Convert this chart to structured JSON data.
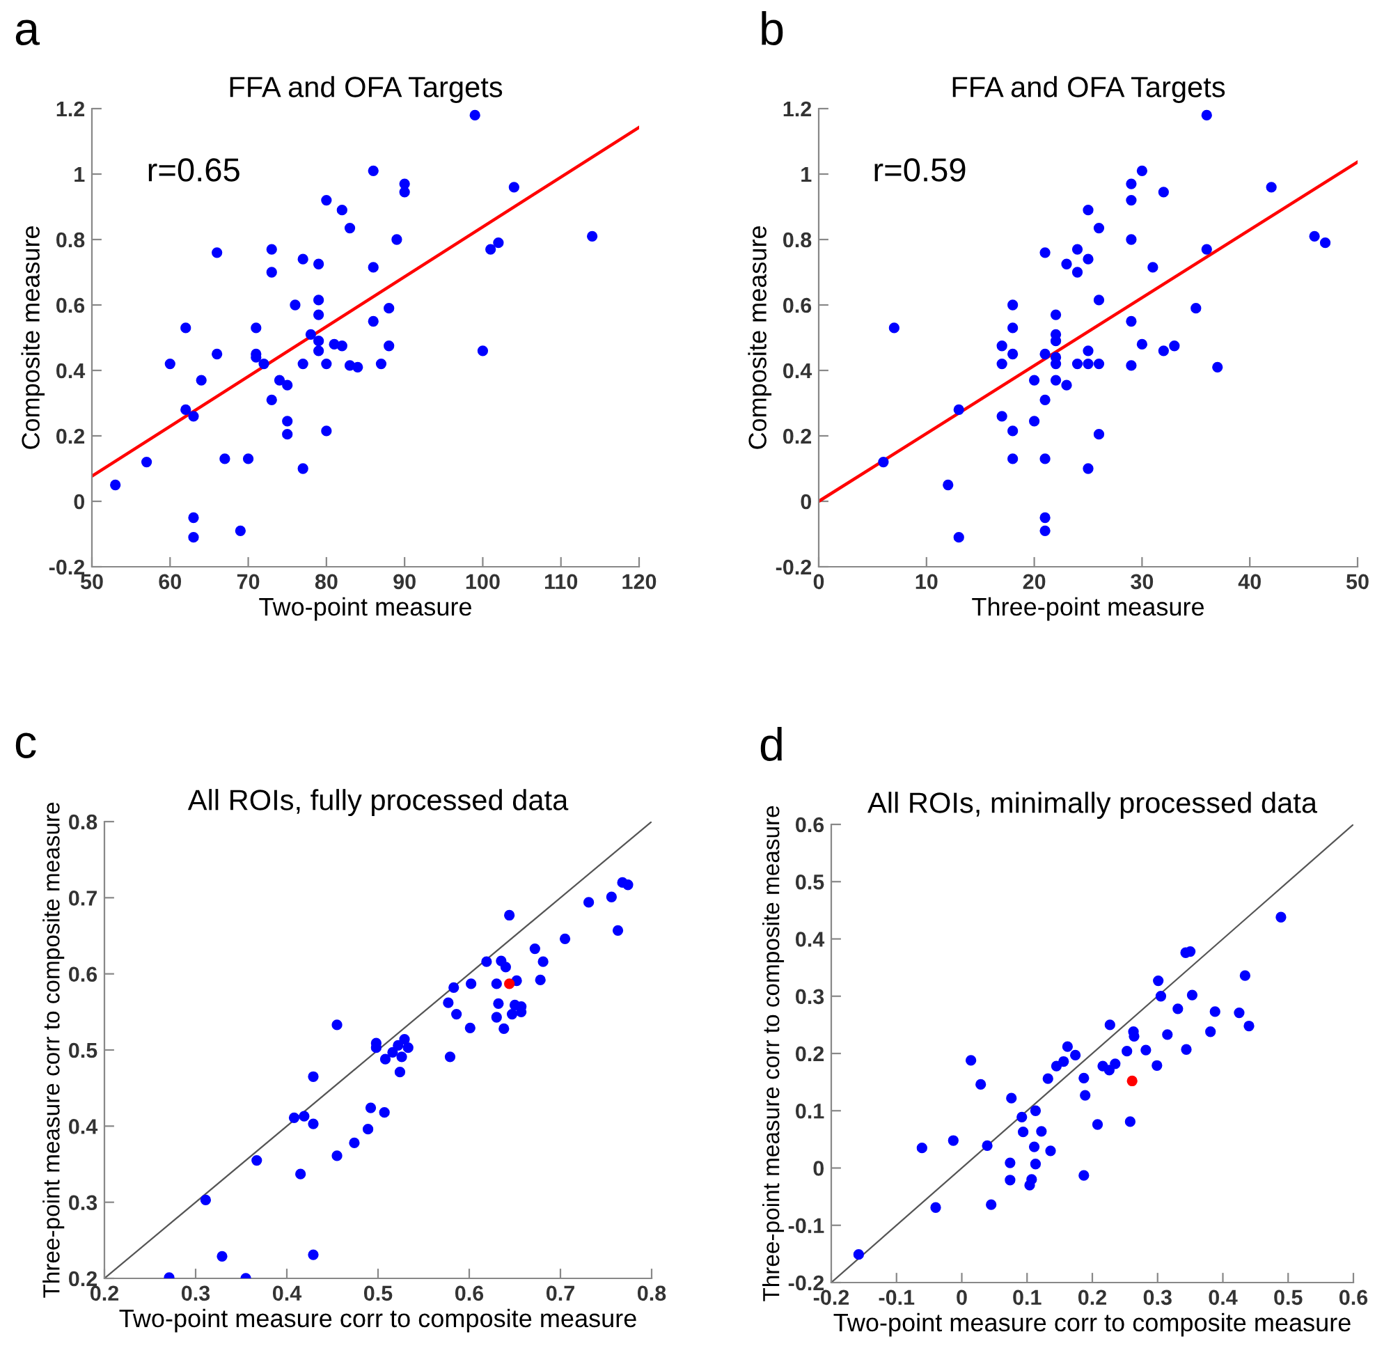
{
  "chart_data": [
    {
      "type": "scatter",
      "title": "FFA and OFA Targets",
      "xlabel": "Two-point measure",
      "ylabel": "Composite measure",
      "annotations": [
        "a",
        "r=0.65"
      ],
      "xlim": [
        50,
        120
      ],
      "xticks": [
        50,
        60,
        70,
        80,
        90,
        100,
        110,
        120
      ],
      "ylim": [
        -0.2,
        1.2
      ],
      "yticks": [
        -0.2,
        0,
        0.2,
        0.4,
        0.6,
        0.8,
        1,
        1.2
      ],
      "grid": false,
      "marker": "circle",
      "series": [
        {
          "color": "#0000ff",
          "x": [
            53,
            57,
            60,
            62,
            62,
            63,
            63,
            63,
            64,
            66,
            66,
            67,
            69,
            70,
            71,
            71,
            71,
            72,
            73,
            73,
            73,
            74,
            75,
            75,
            75,
            76,
            77,
            77,
            77,
            78,
            79,
            79,
            79,
            79,
            79,
            80,
            80,
            80,
            81,
            82,
            82,
            83,
            83,
            84,
            86,
            86,
            86,
            87,
            88,
            88,
            89,
            90,
            90,
            99,
            100,
            101,
            102,
            104,
            114
          ],
          "values": [
            0.05,
            0.12,
            0.42,
            0.53,
            0.28,
            0.26,
            -0.05,
            -0.11,
            0.37,
            0.76,
            0.45,
            0.13,
            -0.09,
            0.13,
            0.53,
            0.45,
            0.44,
            0.42,
            0.77,
            0.7,
            0.31,
            0.37,
            0.355,
            0.245,
            0.205,
            0.6,
            0.74,
            0.42,
            0.1,
            0.51,
            0.725,
            0.615,
            0.57,
            0.49,
            0.46,
            0.92,
            0.42,
            0.215,
            0.48,
            0.89,
            0.475,
            0.835,
            0.415,
            0.41,
            1.01,
            0.715,
            0.55,
            0.42,
            0.59,
            0.475,
            0.8,
            0.97,
            0.945,
            1.18,
            0.46,
            0.77,
            0.79,
            0.96,
            0.81
          ]
        },
        {
          "type": "line",
          "marker": "none",
          "color": "#ff0000",
          "x": [
            50,
            120
          ],
          "values": [
            0.077,
            1.143
          ]
        }
      ]
    },
    {
      "type": "scatter",
      "title": "FFA and OFA Targets",
      "xlabel": "Three-point measure",
      "ylabel": "Composite measure",
      "annotations": [
        "b",
        "r=0.59"
      ],
      "xlim": [
        0,
        50
      ],
      "xticks": [
        0,
        10,
        20,
        30,
        40,
        50
      ],
      "ylim": [
        -0.2,
        1.2
      ],
      "yticks": [
        -0.2,
        0,
        0.2,
        0.4,
        0.6,
        0.8,
        1,
        1.2
      ],
      "grid": false,
      "marker": "circle",
      "series": [
        {
          "color": "#0000ff",
          "x": [
            6,
            7,
            12,
            13,
            13,
            17,
            17,
            17,
            18,
            18,
            18,
            18,
            18,
            20,
            20,
            21,
            21,
            21,
            21,
            21,
            21,
            22,
            22,
            22,
            22,
            22,
            22,
            23,
            23,
            24,
            24,
            24,
            25,
            25,
            25,
            25,
            25,
            26,
            26,
            26,
            26,
            29,
            29,
            29,
            29,
            29,
            30,
            30,
            31,
            32,
            32,
            33,
            35,
            36,
            36,
            37,
            42,
            46,
            47
          ],
          "values": [
            0.12,
            0.53,
            0.05,
            0.28,
            -0.11,
            0.475,
            0.42,
            0.26,
            0.6,
            0.53,
            0.45,
            0.215,
            0.13,
            0.37,
            0.245,
            0.76,
            0.45,
            0.31,
            0.13,
            -0.05,
            -0.09,
            0.57,
            0.51,
            0.49,
            0.44,
            0.42,
            0.37,
            0.725,
            0.355,
            0.77,
            0.7,
            0.42,
            0.89,
            0.74,
            0.46,
            0.42,
            0.1,
            0.835,
            0.615,
            0.42,
            0.205,
            0.97,
            0.92,
            0.8,
            0.55,
            0.415,
            1.01,
            0.48,
            0.715,
            0.945,
            0.46,
            0.475,
            0.59,
            1.18,
            0.77,
            0.41,
            0.96,
            0.81,
            0.79
          ]
        },
        {
          "type": "line",
          "marker": "none",
          "color": "#ff0000",
          "x": [
            0,
            50
          ],
          "values": [
            0.0,
            1.037
          ]
        }
      ]
    },
    {
      "type": "scatter",
      "title": "All ROIs, fully processed data",
      "xlabel": "Two-point measure corr to composite measure",
      "ylabel": "Three-point measure corr to composite measure",
      "annotations": [
        "c"
      ],
      "xlim": [
        0.2,
        0.8
      ],
      "xticks": [
        0.2,
        0.3,
        0.4,
        0.5,
        0.6,
        0.7,
        0.8
      ],
      "ylim": [
        0.2,
        0.8
      ],
      "yticks": [
        0.2,
        0.3,
        0.4,
        0.5,
        0.6,
        0.7,
        0.8
      ],
      "grid": false,
      "marker": "circle",
      "series": [
        {
          "color": "#0000ff",
          "x": [
            0.271,
            0.311,
            0.329,
            0.355,
            0.367,
            0.408,
            0.415,
            0.419,
            0.429,
            0.429,
            0.429,
            0.455,
            0.455,
            0.474,
            0.489,
            0.492,
            0.498,
            0.498,
            0.507,
            0.508,
            0.516,
            0.522,
            0.524,
            0.526,
            0.529,
            0.533,
            0.577,
            0.579,
            0.583,
            0.586,
            0.601,
            0.602,
            0.619,
            0.63,
            0.63,
            0.632,
            0.635,
            0.638,
            0.64,
            0.644,
            0.647,
            0.65,
            0.652,
            0.657,
            0.657,
            0.672,
            0.678,
            0.681,
            0.705,
            0.731,
            0.756,
            0.763,
            0.768,
            0.774
          ],
          "values": [
            0.201,
            0.303,
            0.229,
            0.2,
            0.355,
            0.411,
            0.337,
            0.413,
            0.465,
            0.403,
            0.231,
            0.533,
            0.361,
            0.378,
            0.396,
            0.424,
            0.509,
            0.503,
            0.418,
            0.488,
            0.497,
            0.506,
            0.471,
            0.491,
            0.514,
            0.503,
            0.562,
            0.491,
            0.582,
            0.547,
            0.529,
            0.587,
            0.616,
            0.587,
            0.543,
            0.561,
            0.617,
            0.528,
            0.609,
            0.677,
            0.547,
            0.559,
            0.591,
            0.557,
            0.55,
            0.633,
            0.592,
            0.616,
            0.646,
            0.694,
            0.701,
            0.657,
            0.72,
            0.717
          ]
        },
        {
          "color": "#ff0000",
          "x": [
            0.644
          ],
          "values": [
            0.587
          ]
        },
        {
          "type": "line",
          "marker": "none",
          "color": "#555555",
          "x": [
            0.2,
            0.8
          ],
          "values": [
            0.2,
            0.8
          ]
        }
      ]
    },
    {
      "type": "scatter",
      "title": "All ROIs, minimally processed data",
      "xlabel": "Two-point measure corr to composite measure",
      "ylabel": "Three-point measure corr to composite measure",
      "annotations": [
        "d"
      ],
      "xlim": [
        -0.2,
        0.6
      ],
      "xticks": [
        -0.2,
        -0.1,
        0,
        0.1,
        0.2,
        0.3,
        0.4,
        0.5,
        0.6
      ],
      "ylim": [
        -0.2,
        0.6
      ],
      "yticks": [
        -0.2,
        -0.1,
        0,
        0.1,
        0.2,
        0.3,
        0.4,
        0.5,
        0.6
      ],
      "grid": false,
      "marker": "circle",
      "series": [
        {
          "color": "#0000ff",
          "x": [
            -0.158,
            -0.061,
            -0.04,
            -0.013,
            0.014,
            0.029,
            0.039,
            0.045,
            0.074,
            0.074,
            0.076,
            0.092,
            0.094,
            0.104,
            0.107,
            0.111,
            0.113,
            0.113,
            0.122,
            0.132,
            0.136,
            0.145,
            0.156,
            0.162,
            0.174,
            0.187,
            0.187,
            0.189,
            0.208,
            0.216,
            0.226,
            0.227,
            0.235,
            0.253,
            0.258,
            0.263,
            0.264,
            0.282,
            0.299,
            0.301,
            0.305,
            0.315,
            0.331,
            0.343,
            0.344,
            0.35,
            0.353,
            0.381,
            0.388,
            0.425,
            0.434,
            0.44,
            0.489
          ],
          "values": [
            -0.151,
            0.035,
            -0.069,
            0.048,
            0.188,
            0.146,
            0.039,
            -0.064,
            0.009,
            -0.021,
            0.122,
            0.089,
            0.063,
            -0.03,
            -0.02,
            0.037,
            0.1,
            0.007,
            0.064,
            0.156,
            0.03,
            0.178,
            0.186,
            0.212,
            0.197,
            0.157,
            -0.013,
            0.127,
            0.076,
            0.178,
            0.171,
            0.25,
            0.182,
            0.204,
            0.081,
            0.238,
            0.23,
            0.206,
            0.179,
            0.327,
            0.3,
            0.233,
            0.278,
            0.376,
            0.207,
            0.378,
            0.302,
            0.238,
            0.273,
            0.271,
            0.336,
            0.248,
            0.438
          ]
        },
        {
          "color": "#ff0000",
          "x": [
            0.261
          ],
          "values": [
            0.152
          ]
        },
        {
          "type": "line",
          "marker": "none",
          "color": "#555555",
          "x": [
            -0.2,
            0.6
          ],
          "values": [
            -0.2,
            0.6
          ]
        }
      ]
    }
  ]
}
